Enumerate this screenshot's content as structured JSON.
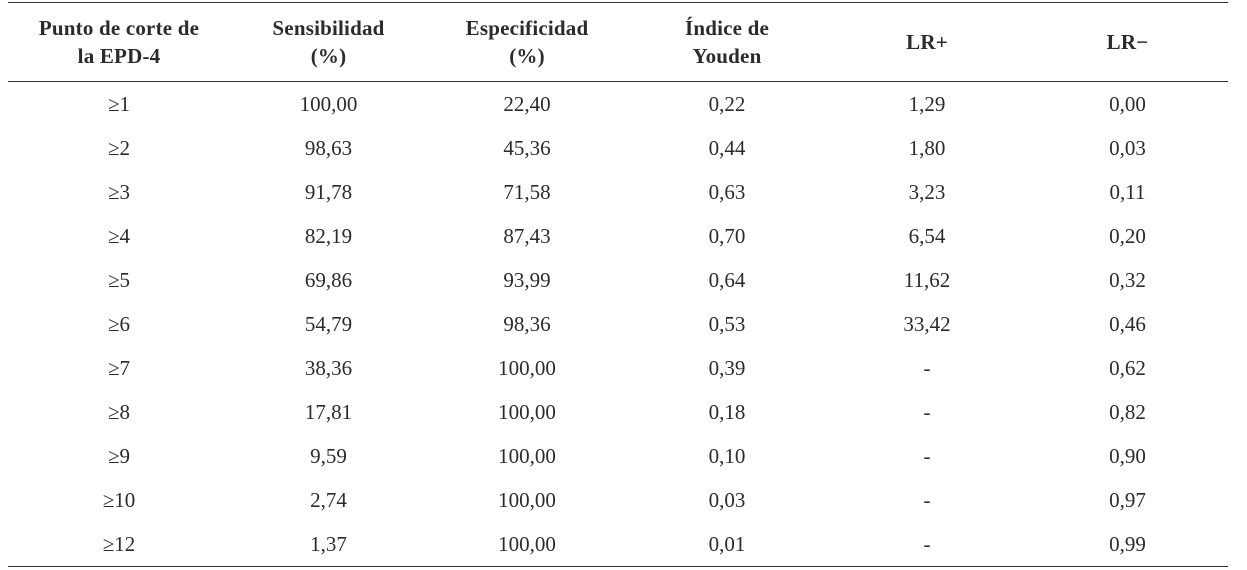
{
  "table": {
    "headers": [
      [
        "Punto de corte de",
        "la EPD-4"
      ],
      [
        "Sensibilidad",
        "(%)"
      ],
      [
        "Especificidad",
        "(%)"
      ],
      [
        "Índice de",
        "Youden"
      ],
      [
        "LR+"
      ],
      [
        "LR−"
      ]
    ],
    "rows": [
      [
        "≥1",
        "100,00",
        "22,40",
        "0,22",
        "1,29",
        "0,00"
      ],
      [
        "≥2",
        "98,63",
        "45,36",
        "0,44",
        "1,80",
        "0,03"
      ],
      [
        "≥3",
        "91,78",
        "71,58",
        "0,63",
        "3,23",
        "0,11"
      ],
      [
        "≥4",
        "82,19",
        "87,43",
        "0,70",
        "6,54",
        "0,20"
      ],
      [
        "≥5",
        "69,86",
        "93,99",
        "0,64",
        "11,62",
        "0,32"
      ],
      [
        "≥6",
        "54,79",
        "98,36",
        "0,53",
        "33,42",
        "0,46"
      ],
      [
        "≥7",
        "38,36",
        "100,00",
        "0,39",
        "-",
        "0,62"
      ],
      [
        "≥8",
        "17,81",
        "100,00",
        "0,18",
        "-",
        "0,82"
      ],
      [
        "≥9",
        "9,59",
        "100,00",
        "0,10",
        "-",
        "0,90"
      ],
      [
        "≥10",
        "2,74",
        "100,00",
        "0,03",
        "-",
        "0,97"
      ],
      [
        "≥12",
        "1,37",
        "100,00",
        "0,01",
        "-",
        "0,99"
      ]
    ]
  }
}
